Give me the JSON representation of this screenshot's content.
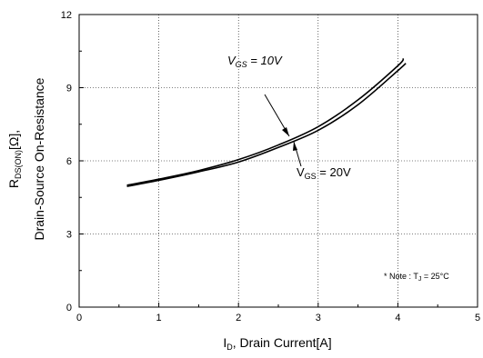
{
  "chart_data": {
    "type": "line",
    "title": "",
    "xlabel": {
      "main": "I",
      "sub": "D",
      "rest": ", Drain Current[A]"
    },
    "ylabel": {
      "line1_main": "R",
      "line1_sub": "DS(ON)",
      "line1_rest": "[Ω],",
      "line2": "Drain-Source On-Resistance"
    },
    "xlim": [
      0,
      5
    ],
    "ylim": [
      0,
      12
    ],
    "xticks": [
      "0",
      "1",
      "2",
      "3",
      "4",
      "5"
    ],
    "yticks": [
      "0",
      "3",
      "6",
      "9",
      "12"
    ],
    "grid": true,
    "series": [
      {
        "name": "VGS = 10V",
        "x": [
          0.6,
          1.0,
          1.5,
          2.0,
          2.5,
          3.0,
          3.5,
          4.0,
          4.07
        ],
        "y": [
          5.0,
          5.25,
          5.6,
          6.05,
          6.65,
          7.4,
          8.5,
          9.9,
          10.2
        ]
      },
      {
        "name": "VGS = 20V",
        "x": [
          0.6,
          1.0,
          1.5,
          2.0,
          2.5,
          3.0,
          3.5,
          4.0,
          4.1
        ],
        "y": [
          4.95,
          5.2,
          5.55,
          5.95,
          6.55,
          7.25,
          8.3,
          9.7,
          10.0
        ]
      }
    ],
    "annotations": {
      "vgs10": {
        "v": "V",
        "sub": "GS",
        "rest": " = 10V",
        "points_to": [
          2.73,
          6.95
        ]
      },
      "vgs20": {
        "v": "V",
        "sub": "GS",
        "rest": " = 20V",
        "points_to": [
          2.73,
          6.85
        ]
      },
      "note": "* Note : T",
      "note_sub": "J",
      "note_rest": " = 25°C"
    },
    "colors": {
      "line": "#000000",
      "grid": "#000000",
      "frame": "#000000"
    }
  }
}
